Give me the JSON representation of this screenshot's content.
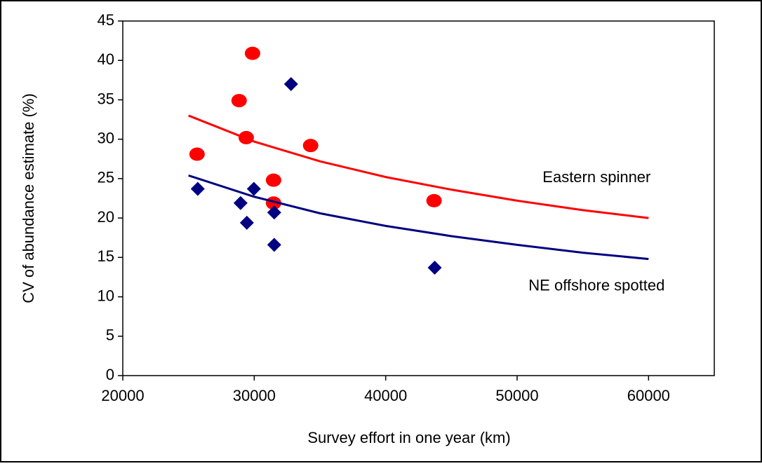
{
  "chart_data": {
    "type": "scatter",
    "x_label": "Survey effort in one year (km)",
    "y_label": "CV of abundance estimate (%)",
    "xlim": [
      20000,
      65000
    ],
    "xticks": [
      20000,
      30000,
      40000,
      50000,
      60000
    ],
    "ylim": [
      0,
      45
    ],
    "yticks": [
      0,
      5,
      10,
      15,
      20,
      25,
      30,
      35,
      40,
      45
    ],
    "grid": false,
    "series": [
      {
        "name": "Eastern spinner",
        "color": "#ff0000",
        "marker": "circle",
        "x": [
          25650,
          28850,
          29390,
          29870,
          31470,
          31470,
          34290,
          43680
        ],
        "values": [
          28.1,
          34.9,
          30.2,
          40.9,
          24.8,
          21.9,
          29.2,
          22.2
        ],
        "fit": {
          "x": [
            25000,
            30000,
            35000,
            40000,
            45000,
            50000,
            55000,
            60000
          ],
          "values": [
            33.0,
            29.7,
            27.2,
            25.2,
            23.6,
            22.2,
            21.0,
            20.0
          ]
        }
      },
      {
        "name": "NE offshore spotted",
        "color": "#000080",
        "marker": "diamond",
        "x": [
          25700,
          28960,
          29440,
          29970,
          31520,
          31520,
          32800,
          43730
        ],
        "values": [
          23.7,
          21.9,
          19.4,
          23.7,
          20.7,
          16.6,
          37.0,
          13.7
        ],
        "fit": {
          "x": [
            25000,
            30000,
            35000,
            40000,
            45000,
            50000,
            55000,
            60000
          ],
          "values": [
            25.4,
            22.7,
            20.6,
            19.0,
            17.7,
            16.6,
            15.6,
            14.8
          ]
        }
      }
    ]
  }
}
